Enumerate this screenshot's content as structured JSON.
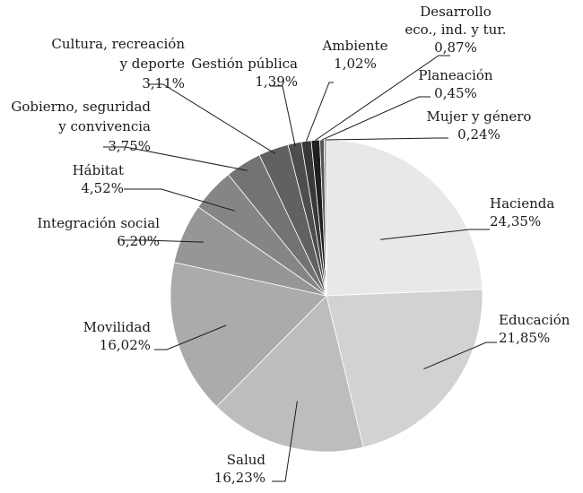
{
  "chart_data": {
    "type": "pie",
    "categories": [
      "Hacienda",
      "Educación",
      "Salud",
      "Movilidad",
      "Integración social",
      "Hábitat",
      "Gobierno, seguridad y convivencia",
      "Cultura, recreación y deporte",
      "Gestión pública",
      "Ambiente",
      "Desarrollo eco., ind. y tur.",
      "Planeación",
      "Mujer y género"
    ],
    "values": [
      24.35,
      21.85,
      16.23,
      16.02,
      6.2,
      4.52,
      3.75,
      3.11,
      1.39,
      1.02,
      0.87,
      0.45,
      0.24
    ],
    "slices": [
      {
        "name": "Hacienda",
        "value": 24.35,
        "label_lines": [
          "Hacienda",
          "24,35%"
        ],
        "color": "#e8e8e8"
      },
      {
        "name": "Educación",
        "value": 21.85,
        "label_lines": [
          "Educación",
          "21,85%"
        ],
        "color": "#d2d2d2"
      },
      {
        "name": "Salud",
        "value": 16.23,
        "label_lines": [
          "Salud",
          "16,23%"
        ],
        "color": "#bdbdbd"
      },
      {
        "name": "Movilidad",
        "value": 16.02,
        "label_lines": [
          "Movilidad",
          "16,02%"
        ],
        "color": "#ababab"
      },
      {
        "name": "Integración social",
        "value": 6.2,
        "label_lines": [
          "Integración social",
          "6,20%"
        ],
        "color": "#969696"
      },
      {
        "name": "Hábitat",
        "value": 4.52,
        "label_lines": [
          "Hábitat",
          "4,52%"
        ],
        "color": "#858585"
      },
      {
        "name": "Gobierno, seguridad y convivencia",
        "value": 3.75,
        "label_lines": [
          "Gobierno, seguridad",
          "y convivencia",
          "3,75%"
        ],
        "color": "#737373"
      },
      {
        "name": "Cultura, recreación y deporte",
        "value": 3.11,
        "label_lines": [
          "Cultura, recreación",
          "y deporte",
          "3,11%"
        ],
        "color": "#616161"
      },
      {
        "name": "Gestión pública",
        "value": 1.39,
        "label_lines": [
          "Gestión pública",
          "1,39%"
        ],
        "color": "#4d4d4d"
      },
      {
        "name": "Ambiente",
        "value": 1.02,
        "label_lines": [
          "Ambiente",
          "1,02%"
        ],
        "color": "#383838"
      },
      {
        "name": "Desarrollo eco., ind. y tur.",
        "value": 0.87,
        "label_lines": [
          "Desarrollo",
          "eco., ind. y tur.",
          "0,87%"
        ],
        "color": "#1f1f1f"
      },
      {
        "name": "Planeación",
        "value": 0.45,
        "label_lines": [
          "Planeación",
          "0,45%"
        ],
        "color": "#555555"
      },
      {
        "name": "Mujer y género",
        "value": 0.24,
        "label_lines": [
          "Mujer y género",
          "0,24%"
        ],
        "color": "#9a9a9a"
      }
    ],
    "start_angle": "12 o'clock",
    "direction": "clockwise",
    "legend": "none",
    "labels": "outside with leader lines"
  }
}
